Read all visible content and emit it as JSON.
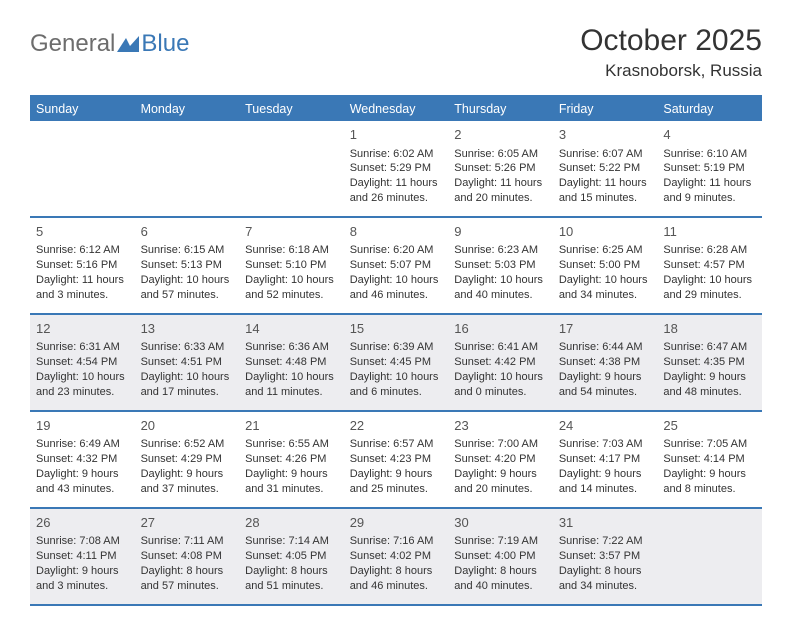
{
  "logo": {
    "text1": "General",
    "text2": "Blue"
  },
  "title": "October 2025",
  "location": "Krasnoborsk, Russia",
  "colors": {
    "accent": "#3a78b6",
    "shade": "#ededf0",
    "text": "#333333",
    "background": "#ffffff"
  },
  "headers": [
    "Sunday",
    "Monday",
    "Tuesday",
    "Wednesday",
    "Thursday",
    "Friday",
    "Saturday"
  ],
  "weeks": [
    {
      "shade": false,
      "days": [
        null,
        null,
        null,
        {
          "n": "1",
          "sunrise": "6:02 AM",
          "sunset": "5:29 PM",
          "daylight": "11 hours and 26 minutes."
        },
        {
          "n": "2",
          "sunrise": "6:05 AM",
          "sunset": "5:26 PM",
          "daylight": "11 hours and 20 minutes."
        },
        {
          "n": "3",
          "sunrise": "6:07 AM",
          "sunset": "5:22 PM",
          "daylight": "11 hours and 15 minutes."
        },
        {
          "n": "4",
          "sunrise": "6:10 AM",
          "sunset": "5:19 PM",
          "daylight": "11 hours and 9 minutes."
        }
      ]
    },
    {
      "shade": false,
      "days": [
        {
          "n": "5",
          "sunrise": "6:12 AM",
          "sunset": "5:16 PM",
          "daylight": "11 hours and 3 minutes."
        },
        {
          "n": "6",
          "sunrise": "6:15 AM",
          "sunset": "5:13 PM",
          "daylight": "10 hours and 57 minutes."
        },
        {
          "n": "7",
          "sunrise": "6:18 AM",
          "sunset": "5:10 PM",
          "daylight": "10 hours and 52 minutes."
        },
        {
          "n": "8",
          "sunrise": "6:20 AM",
          "sunset": "5:07 PM",
          "daylight": "10 hours and 46 minutes."
        },
        {
          "n": "9",
          "sunrise": "6:23 AM",
          "sunset": "5:03 PM",
          "daylight": "10 hours and 40 minutes."
        },
        {
          "n": "10",
          "sunrise": "6:25 AM",
          "sunset": "5:00 PM",
          "daylight": "10 hours and 34 minutes."
        },
        {
          "n": "11",
          "sunrise": "6:28 AM",
          "sunset": "4:57 PM",
          "daylight": "10 hours and 29 minutes."
        }
      ]
    },
    {
      "shade": true,
      "days": [
        {
          "n": "12",
          "sunrise": "6:31 AM",
          "sunset": "4:54 PM",
          "daylight": "10 hours and 23 minutes."
        },
        {
          "n": "13",
          "sunrise": "6:33 AM",
          "sunset": "4:51 PM",
          "daylight": "10 hours and 17 minutes."
        },
        {
          "n": "14",
          "sunrise": "6:36 AM",
          "sunset": "4:48 PM",
          "daylight": "10 hours and 11 minutes."
        },
        {
          "n": "15",
          "sunrise": "6:39 AM",
          "sunset": "4:45 PM",
          "daylight": "10 hours and 6 minutes."
        },
        {
          "n": "16",
          "sunrise": "6:41 AM",
          "sunset": "4:42 PM",
          "daylight": "10 hours and 0 minutes."
        },
        {
          "n": "17",
          "sunrise": "6:44 AM",
          "sunset": "4:38 PM",
          "daylight": "9 hours and 54 minutes."
        },
        {
          "n": "18",
          "sunrise": "6:47 AM",
          "sunset": "4:35 PM",
          "daylight": "9 hours and 48 minutes."
        }
      ]
    },
    {
      "shade": false,
      "days": [
        {
          "n": "19",
          "sunrise": "6:49 AM",
          "sunset": "4:32 PM",
          "daylight": "9 hours and 43 minutes."
        },
        {
          "n": "20",
          "sunrise": "6:52 AM",
          "sunset": "4:29 PM",
          "daylight": "9 hours and 37 minutes."
        },
        {
          "n": "21",
          "sunrise": "6:55 AM",
          "sunset": "4:26 PM",
          "daylight": "9 hours and 31 minutes."
        },
        {
          "n": "22",
          "sunrise": "6:57 AM",
          "sunset": "4:23 PM",
          "daylight": "9 hours and 25 minutes."
        },
        {
          "n": "23",
          "sunrise": "7:00 AM",
          "sunset": "4:20 PM",
          "daylight": "9 hours and 20 minutes."
        },
        {
          "n": "24",
          "sunrise": "7:03 AM",
          "sunset": "4:17 PM",
          "daylight": "9 hours and 14 minutes."
        },
        {
          "n": "25",
          "sunrise": "7:05 AM",
          "sunset": "4:14 PM",
          "daylight": "9 hours and 8 minutes."
        }
      ]
    },
    {
      "shade": true,
      "days": [
        {
          "n": "26",
          "sunrise": "7:08 AM",
          "sunset": "4:11 PM",
          "daylight": "9 hours and 3 minutes."
        },
        {
          "n": "27",
          "sunrise": "7:11 AM",
          "sunset": "4:08 PM",
          "daylight": "8 hours and 57 minutes."
        },
        {
          "n": "28",
          "sunrise": "7:14 AM",
          "sunset": "4:05 PM",
          "daylight": "8 hours and 51 minutes."
        },
        {
          "n": "29",
          "sunrise": "7:16 AM",
          "sunset": "4:02 PM",
          "daylight": "8 hours and 46 minutes."
        },
        {
          "n": "30",
          "sunrise": "7:19 AM",
          "sunset": "4:00 PM",
          "daylight": "8 hours and 40 minutes."
        },
        {
          "n": "31",
          "sunrise": "7:22 AM",
          "sunset": "3:57 PM",
          "daylight": "8 hours and 34 minutes."
        },
        null
      ]
    }
  ],
  "labels": {
    "sunrise": "Sunrise: ",
    "sunset": "Sunset: ",
    "daylight": "Daylight: "
  }
}
